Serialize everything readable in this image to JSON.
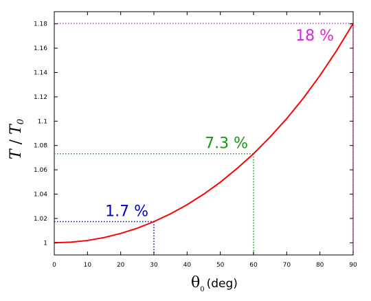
{
  "chart_data": {
    "type": "line",
    "title": "",
    "xlabel_symbol": "θ",
    "xlabel_subscript": "0",
    "xlabel_unit": "(deg)",
    "ylabel_base": "T",
    "ylabel_sep": " / ",
    "ylabel_denom": "T",
    "ylabel_subscript": "0",
    "xlim": [
      0,
      90
    ],
    "ylim": [
      0.99,
      1.19
    ],
    "x_ticks": [
      "0",
      "10",
      "20",
      "30",
      "40",
      "50",
      "60",
      "70",
      "80",
      "90"
    ],
    "y_ticks": [
      "1",
      "1.02",
      "1.04",
      "1.06",
      "1.08",
      "1.1",
      "1.12",
      "1.14",
      "1.16",
      "1.18"
    ],
    "grid": false,
    "series": [
      {
        "color": "#ff0000",
        "x": [
          0,
          5,
          10,
          15,
          20,
          25,
          30,
          35,
          40,
          45,
          50,
          55,
          60,
          65,
          70,
          75,
          80,
          85,
          90
        ],
        "y": [
          1.0,
          1.0005,
          1.0019,
          1.0043,
          1.0077,
          1.012,
          1.0174,
          1.0238,
          1.0313,
          1.04,
          1.0498,
          1.061,
          1.0732,
          1.087,
          1.1021,
          1.1189,
          1.1375,
          1.1579,
          1.1803
        ]
      }
    ],
    "annotations": [
      {
        "label": "1.7 %",
        "x": 30,
        "y": 1.0174,
        "color": "#0000cc"
      },
      {
        "label": "7.3 %",
        "x": 60,
        "y": 1.0732,
        "color": "#119911"
      },
      {
        "label": "18 %",
        "x": 90,
        "y": 1.1803,
        "color": "#dd22dd"
      }
    ]
  }
}
